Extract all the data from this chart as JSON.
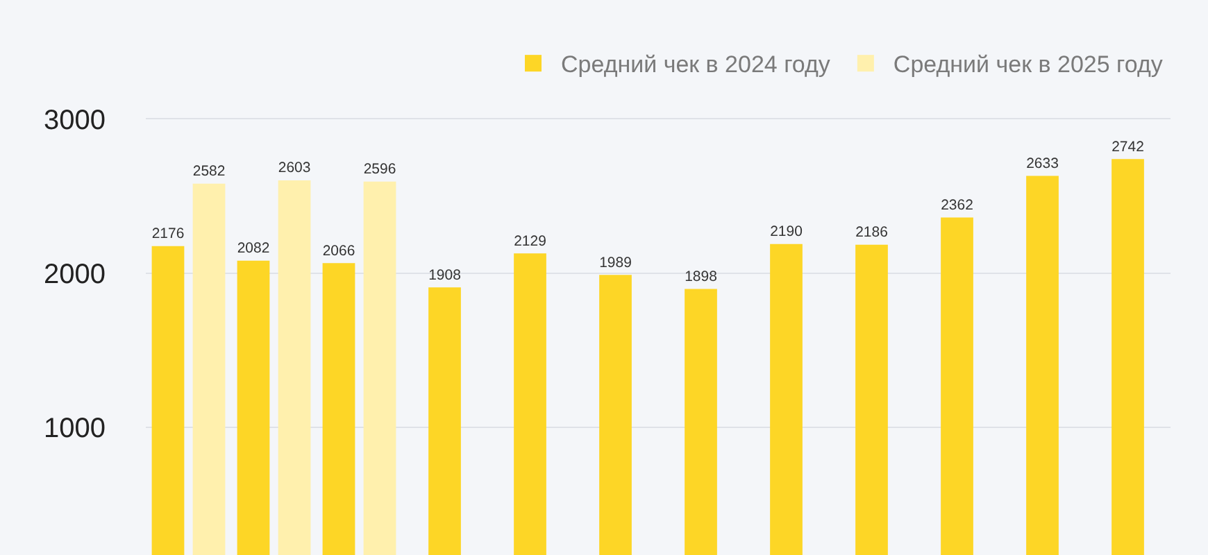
{
  "chart_data": {
    "type": "bar",
    "categories": [
      null,
      null,
      null,
      null,
      null,
      null,
      null,
      null,
      null,
      null,
      null,
      null
    ],
    "series": [
      {
        "name": "Средний чек в 2024 году",
        "color": "#fdd626",
        "values": [
          2176,
          2082,
          2066,
          1908,
          2129,
          1989,
          1898,
          2190,
          2186,
          2362,
          2633,
          2742
        ]
      },
      {
        "name": "Средний чек в 2025 году",
        "color": "#fff0ad",
        "values": [
          2582,
          2603,
          2596,
          null,
          null,
          null,
          null,
          null,
          null,
          null,
          null,
          null
        ]
      }
    ],
    "ylim": [
      170,
      3000
    ],
    "yticks": [
      1000,
      2000,
      3000
    ],
    "grid": "y",
    "legend": "top right",
    "data_labels": true,
    "tick_labels": "y"
  }
}
